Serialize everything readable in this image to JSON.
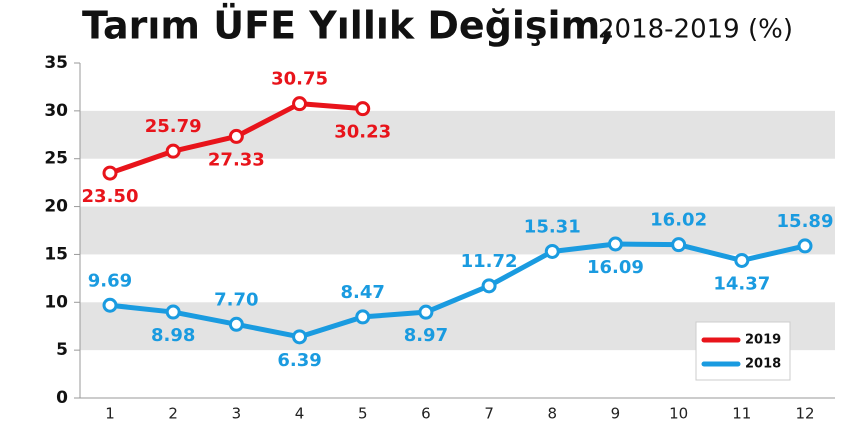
{
  "chart_data": {
    "type": "line",
    "title": "Tarım ÜFE Yıllık Değişim,",
    "subtitle": "2018-2019 (%)",
    "categories": [
      1,
      2,
      3,
      4,
      5,
      6,
      7,
      8,
      9,
      10,
      11,
      12
    ],
    "series": [
      {
        "name": "2019",
        "color": "#e8141b",
        "values": [
          23.5,
          25.79,
          27.33,
          30.75,
          30.23,
          null,
          null,
          null,
          null,
          null,
          null,
          null
        ],
        "value_labels": [
          "23.50",
          "25.79",
          "27.33",
          "30.75",
          "30.23",
          null,
          null,
          null,
          null,
          null,
          null,
          null
        ]
      },
      {
        "name": "2018",
        "color": "#1a9be0",
        "values": [
          9.69,
          8.98,
          7.7,
          6.39,
          8.47,
          8.97,
          11.72,
          15.31,
          16.09,
          16.02,
          14.37,
          15.89
        ],
        "value_labels": [
          "9.69",
          "8.98",
          "7.70",
          "6.39",
          "8.47",
          "8.97",
          "11.72",
          "15.31",
          "16.09",
          "16.02",
          "14.37",
          "15.89"
        ]
      }
    ],
    "ylim": [
      0,
      35
    ],
    "yticks": [
      0,
      5,
      10,
      15,
      20,
      25,
      30,
      35
    ],
    "grid": "bands",
    "legend": "lower right"
  }
}
